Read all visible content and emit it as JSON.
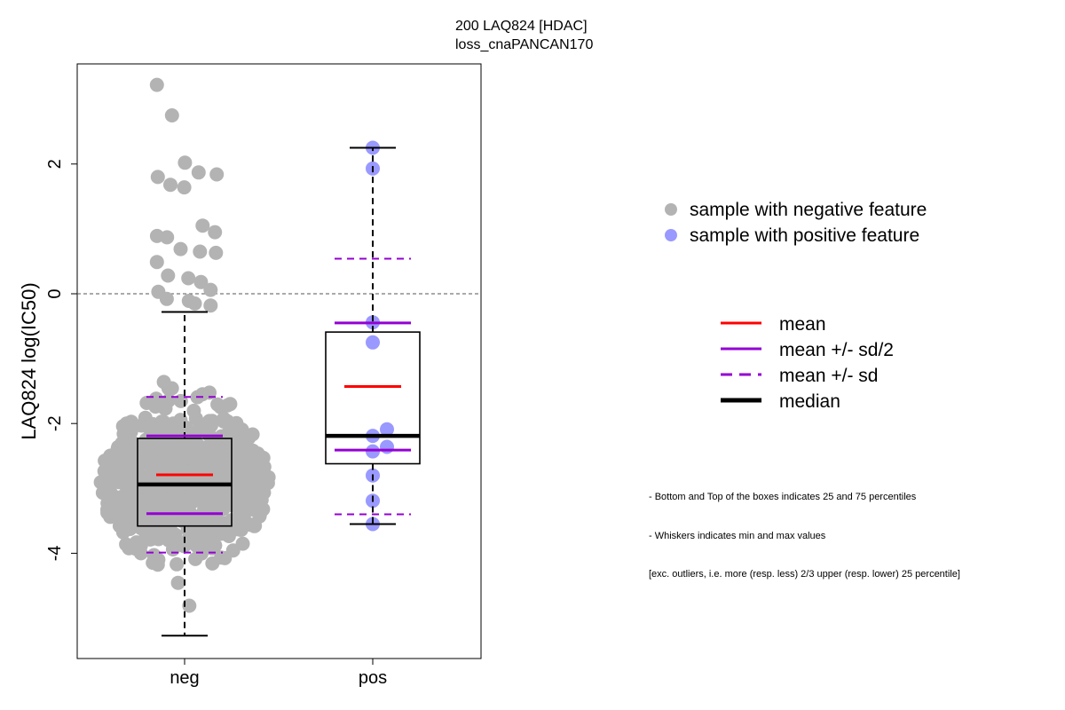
{
  "chart_data": {
    "type": "boxplot",
    "title": "200 LAQ824 [HDAC]",
    "subtitle": "loss_cnaPANCAN170",
    "xlabel": "",
    "ylabel": "LAQ824 log(IC50)",
    "ylim": [
      -5.5,
      3.4
    ],
    "yticks": [
      -4,
      -2,
      0,
      2
    ],
    "reference_line_y": 0,
    "categories": [
      "neg",
      "pos"
    ],
    "groups": [
      {
        "name": "neg",
        "color": "#b3b3b3",
        "min": -5.27,
        "q1": -3.58,
        "median": -2.94,
        "q3": -2.23,
        "max": -0.28,
        "mean": -2.79,
        "mean_minus_half_sd": -3.39,
        "mean_plus_half_sd": -2.19,
        "mean_minus_sd": -3.99,
        "mean_plus_sd": -1.59,
        "outliers": [
          3.22,
          2.75,
          2.02,
          1.87,
          1.84,
          1.8,
          1.68,
          1.64,
          1.05,
          0.95,
          0.89,
          0.87,
          0.69,
          0.65,
          0.63,
          0.49,
          0.28,
          0.24,
          0.18,
          0.06,
          0.03,
          -0.08,
          -0.11,
          -0.15,
          -0.18
        ]
      },
      {
        "name": "pos",
        "color": "#9999ff",
        "min": -3.55,
        "q1": -2.62,
        "median": -2.19,
        "q3": -0.59,
        "max": 2.25,
        "mean": -1.43,
        "mean_minus_half_sd": -2.41,
        "mean_plus_half_sd": -0.45,
        "mean_minus_sd": -3.4,
        "mean_plus_sd": 0.54,
        "points": [
          2.25,
          1.93,
          -0.44,
          -0.75,
          -2.09,
          -2.19,
          -2.36,
          -2.43,
          -2.8,
          -3.19,
          -3.55
        ]
      }
    ],
    "legend_points": [
      {
        "label": "sample with negative feature",
        "color": "#b3b3b3"
      },
      {
        "label": "sample with positive feature",
        "color": "#9999ff"
      }
    ],
    "legend_lines": [
      {
        "label": "mean",
        "color": "#ff0000",
        "style": "solid"
      },
      {
        "label": "mean +/- sd/2",
        "color": "#9400d3",
        "style": "solid"
      },
      {
        "label": "mean +/- sd",
        "color": "#9400d3",
        "style": "dashed"
      },
      {
        "label": "median",
        "color": "#000000",
        "style": "solid-thick"
      }
    ],
    "legend_placement": "right",
    "grid": false
  },
  "notes": [
    "- Bottom and Top of the boxes indicates 25 and 75 percentiles",
    "- Whiskers indicates min and max values",
    "[exc. outliers, i.e. more (resp. less) 2/3 upper (resp. lower) 25 percentile]"
  ]
}
